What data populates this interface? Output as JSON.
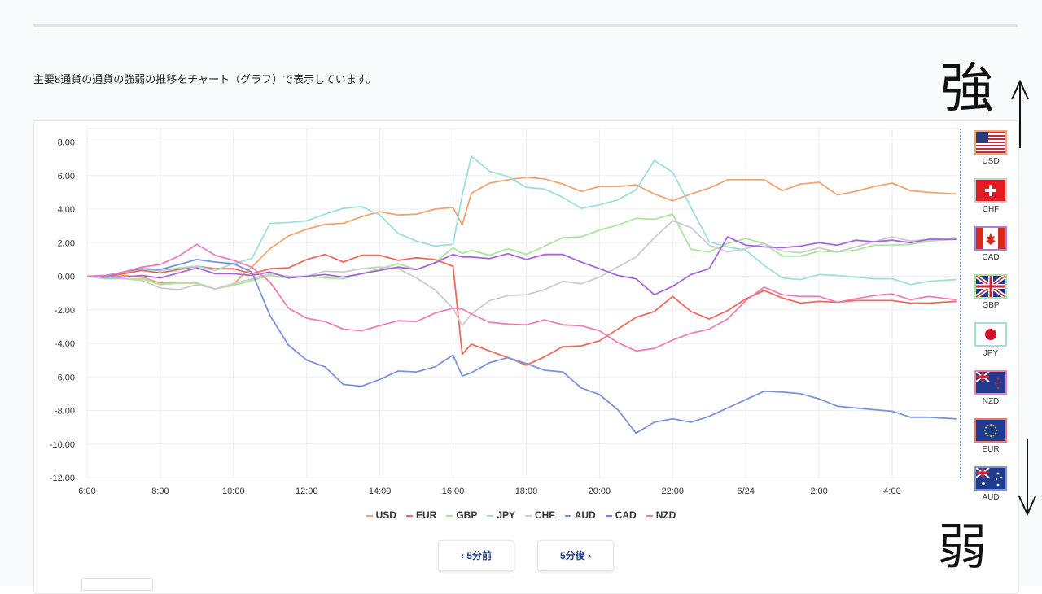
{
  "intro_text": "主要8通貨の通貨の強弱の推移をチャート（グラフ）で表示しています。",
  "annotation": {
    "strong": "強",
    "weak": "弱"
  },
  "nav": {
    "prev_label": "‹ 5分前",
    "next_label": "5分後 ›"
  },
  "flags": [
    {
      "code": "USD",
      "border": "#f0a470",
      "icon": "us-flag-icon"
    },
    {
      "code": "CHF",
      "border": "#cccccc",
      "icon": "swiss-flag-icon"
    },
    {
      "code": "CAD",
      "border": "#a97ee0",
      "icon": "canada-flag-icon"
    },
    {
      "code": "GBP",
      "border": "#a8e89a",
      "icon": "uk-flag-icon"
    },
    {
      "code": "JPY",
      "border": "#9ee0d8",
      "icon": "japan-flag-icon"
    },
    {
      "code": "NZD",
      "border": "#ee7fb3",
      "icon": "nz-flag-icon"
    },
    {
      "code": "EUR",
      "border": "#ef7a6a",
      "icon": "eu-flag-icon"
    },
    {
      "code": "AUD",
      "border": "#7b93db",
      "icon": "australia-flag-icon"
    }
  ],
  "chart_data": {
    "type": "line",
    "title": "",
    "xlabel": "",
    "ylabel": "",
    "ylim": [
      -12,
      8
    ],
    "yticks": [
      "8.00",
      "6.00",
      "4.00",
      "2.00",
      "0.00",
      "-2.00",
      "-4.00",
      "-6.00",
      "-8.00",
      "-10.00",
      "-12.00"
    ],
    "xticks": [
      "6:00",
      "8:00",
      "10:00",
      "12:00",
      "14:00",
      "16:00",
      "18:00",
      "20:00",
      "22:00",
      "6/24",
      "2:00",
      "4:00"
    ],
    "grid": true,
    "legend": "bottom",
    "x_hours": [
      0,
      0.5,
      1,
      1.5,
      2,
      2.5,
      3,
      3.5,
      4,
      4.5,
      5,
      5.5,
      6,
      6.5,
      7,
      7.5,
      8,
      8.5,
      9,
      9.5,
      10,
      10.25,
      10.5,
      11,
      11.5,
      12,
      12.5,
      13,
      13.5,
      14,
      14.5,
      15,
      15.5,
      16,
      16.5,
      17,
      17.5,
      18,
      18.5,
      19,
      19.5,
      20,
      20.5,
      21,
      21.5,
      22,
      22.5,
      23,
      23.75
    ],
    "series": [
      {
        "name": "USD",
        "color": "#f0a470",
        "values": [
          0,
          -0.1,
          0,
          -0.2,
          -0.3,
          -0.4,
          -0.5,
          -0.6,
          -0.4,
          0.5,
          1.5,
          2.5,
          2.8,
          3.0,
          3.3,
          3.6,
          3.8,
          3.5,
          3.8,
          4.0,
          4.0,
          3.2,
          5.0,
          5.5,
          5.6,
          6.0,
          5.8,
          5.4,
          5.2,
          5.4,
          5.3,
          5.3,
          5.0,
          4.5,
          4.8,
          5.4,
          5.8,
          5.7,
          5.6,
          5.2,
          5.5,
          5.5,
          5.0,
          5.1,
          5.3,
          5.4,
          5.2,
          5.0,
          4.9
        ]
      },
      {
        "name": "EUR",
        "color": "#ef6a5a",
        "values": [
          0,
          0,
          0.1,
          0.2,
          0.3,
          0.4,
          0.5,
          0.6,
          0.5,
          0.1,
          0.3,
          0.6,
          1.0,
          1.2,
          1.0,
          1.3,
          1.2,
          0.8,
          1.2,
          1.0,
          0.5,
          -4.5,
          -4.0,
          -4.5,
          -5.0,
          -5.2,
          -4.8,
          -4.3,
          -4.0,
          -3.8,
          -3.2,
          -2.6,
          -2.0,
          -1.2,
          -2.2,
          -2.4,
          -2.0,
          -1.4,
          -1.0,
          -1.2,
          -1.6,
          -1.6,
          -1.4,
          -1.4,
          -1.5,
          -1.6,
          -1.5,
          -1.6,
          -1.5
        ]
      },
      {
        "name": "GBP",
        "color": "#a8e89a",
        "values": [
          0,
          -0.1,
          -0.2,
          -0.3,
          -0.4,
          -0.4,
          -0.5,
          -0.6,
          -0.5,
          -0.3,
          -0.1,
          0,
          0,
          -0.2,
          0,
          0.2,
          0.4,
          0.6,
          0.5,
          0.8,
          1.6,
          1.5,
          1.6,
          1.2,
          1.5,
          1.4,
          1.8,
          2.2,
          2.5,
          2.8,
          3.0,
          3.3,
          3.5,
          3.7,
          1.5,
          1.6,
          2.0,
          2.2,
          1.8,
          1.3,
          1.2,
          1.4,
          1.6,
          1.6,
          1.8,
          1.7,
          2.0,
          2.1,
          2.2
        ]
      },
      {
        "name": "JPY",
        "color": "#9ee0d8",
        "values": [
          0,
          0.1,
          0.2,
          0.3,
          0.4,
          0.5,
          0.5,
          0.5,
          0.8,
          1.0,
          3.0,
          3.3,
          3.3,
          3.6,
          4.2,
          4.2,
          3.6,
          2.4,
          2.2,
          1.8,
          1.8,
          5.0,
          7.2,
          6.2,
          5.8,
          5.4,
          5.2,
          4.6,
          4.2,
          4.3,
          4.5,
          5.0,
          7.0,
          6.2,
          4.0,
          2.2,
          1.8,
          1.5,
          0.5,
          0,
          -0.2,
          0,
          0.2,
          0,
          -0.2,
          -0.3,
          -0.4,
          -0.3,
          -0.2
        ]
      },
      {
        "name": "CHF",
        "color": "#cccccc",
        "values": [
          0,
          0,
          -0.2,
          -0.4,
          -0.6,
          -0.8,
          -0.6,
          -0.6,
          -0.4,
          -0.2,
          0,
          0.1,
          0,
          0.2,
          0.4,
          0.5,
          0.5,
          0.3,
          0,
          -0.8,
          -2.0,
          -2.8,
          -2.2,
          -1.5,
          -1.3,
          -1.0,
          -0.8,
          -0.4,
          -0.3,
          0,
          0.5,
          1.0,
          2.4,
          3.3,
          2.8,
          2.0,
          1.5,
          1.6,
          1.8,
          1.6,
          1.4,
          1.6,
          1.6,
          1.8,
          2.0,
          2.2,
          2.2,
          2.2,
          2.3
        ]
      },
      {
        "name": "AUD",
        "color": "#7b93db",
        "values": [
          0,
          0,
          0.2,
          0.3,
          0.5,
          0.7,
          0.9,
          1.0,
          0.8,
          0.2,
          -2.5,
          -4.0,
          -5.0,
          -5.5,
          -6.3,
          -6.5,
          -6.2,
          -5.8,
          -5.6,
          -5.4,
          -4.8,
          -5.8,
          -5.7,
          -5.2,
          -5.0,
          -5.1,
          -5.6,
          -5.8,
          -6.5,
          -7.0,
          -8.0,
          -9.5,
          -8.6,
          -8.5,
          -8.8,
          -8.2,
          -7.8,
          -7.4,
          -7.0,
          -6.8,
          -7.0,
          -7.4,
          -7.6,
          -7.8,
          -8.0,
          -8.2,
          -8.3,
          -8.4,
          -8.5
        ]
      },
      {
        "name": "CAD",
        "color": "#a866dd",
        "values": [
          0,
          0,
          -0.1,
          -0.1,
          0,
          0.2,
          0.4,
          0.3,
          0.2,
          0,
          0.1,
          0,
          0,
          0,
          0.1,
          0.2,
          0.3,
          0.4,
          0.5,
          0.8,
          1.2,
          1.3,
          1.2,
          1.0,
          1.2,
          1.1,
          1.3,
          1.2,
          1.0,
          0.5,
          0,
          -0.3,
          -1.0,
          -0.6,
          0,
          0.6,
          2.4,
          1.8,
          1.6,
          1.8,
          1.8,
          1.9,
          2.0,
          2.2,
          2.0,
          2.0,
          2.1,
          2.2,
          2.2
        ]
      },
      {
        "name": "NZD",
        "color": "#ee7fb3",
        "values": [
          0,
          0.1,
          0.2,
          0.4,
          0.8,
          1.2,
          1.8,
          1.4,
          1.0,
          0.5,
          -0.5,
          -1.8,
          -2.5,
          -2.8,
          -3.0,
          -3.2,
          -3.0,
          -2.8,
          -2.6,
          -2.2,
          -2.0,
          -1.8,
          -2.2,
          -2.8,
          -3.0,
          -2.8,
          -2.6,
          -3.0,
          -2.8,
          -3.2,
          -4.0,
          -4.6,
          -4.2,
          -3.8,
          -3.5,
          -3.0,
          -2.5,
          -1.5,
          -0.8,
          -1.0,
          -1.2,
          -1.3,
          -1.4,
          -1.3,
          -1.2,
          -1.2,
          -1.3,
          -1.2,
          -1.4
        ]
      }
    ]
  }
}
